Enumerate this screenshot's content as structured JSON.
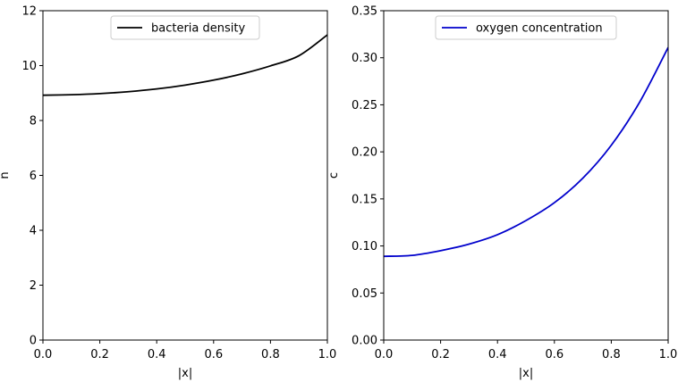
{
  "chart_data": [
    {
      "type": "line",
      "xlabel": "|x|",
      "ylabel": "n",
      "xlim": [
        0.0,
        1.0
      ],
      "ylim": [
        0,
        12
      ],
      "xticks": [
        "0.0",
        "0.2",
        "0.4",
        "0.6",
        "0.8",
        "1.0"
      ],
      "yticks": [
        "0",
        "2",
        "4",
        "6",
        "8",
        "10",
        "12"
      ],
      "grid": false,
      "legend_position": "top-center",
      "series": [
        {
          "name": "bacteria density",
          "color": "#000000",
          "x": [
            0.0,
            0.1,
            0.2,
            0.3,
            0.4,
            0.5,
            0.6,
            0.7,
            0.8,
            0.9,
            1.0
          ],
          "y": [
            8.92,
            8.94,
            8.98,
            9.05,
            9.15,
            9.29,
            9.47,
            9.7,
            9.99,
            10.36,
            11.12
          ]
        }
      ]
    },
    {
      "type": "line",
      "xlabel": "|x|",
      "ylabel": "c",
      "xlim": [
        0.0,
        1.0
      ],
      "ylim": [
        0.0,
        0.35
      ],
      "xticks": [
        "0.0",
        "0.2",
        "0.4",
        "0.6",
        "0.8",
        "1.0"
      ],
      "yticks": [
        "0.00",
        "0.05",
        "0.10",
        "0.15",
        "0.20",
        "0.25",
        "0.30",
        "0.35"
      ],
      "grid": false,
      "legend_position": "top-center",
      "series": [
        {
          "name": "oxygen concentration",
          "color": "#0000cc",
          "x": [
            0.0,
            0.1,
            0.2,
            0.3,
            0.4,
            0.5,
            0.6,
            0.7,
            0.8,
            0.9,
            1.0
          ],
          "y": [
            0.089,
            0.09,
            0.095,
            0.102,
            0.112,
            0.127,
            0.146,
            0.172,
            0.207,
            0.253,
            0.311
          ]
        }
      ]
    }
  ]
}
